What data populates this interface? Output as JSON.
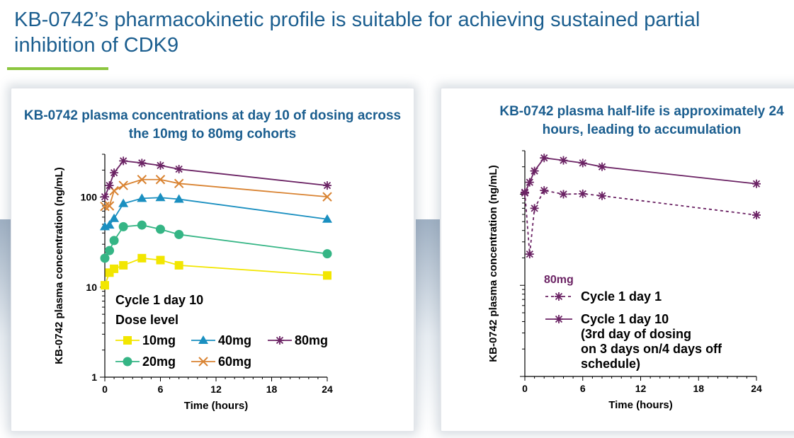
{
  "slide": {
    "title": "KB-0742’s pharmacokinetic profile is suitable for achieving sustained partial inhibition of CDK9"
  },
  "colors": {
    "title_blue": "#1b5e8f",
    "accent_green": "#8cc63f",
    "c10mg": "#f2e600",
    "c20mg": "#35b585",
    "c40mg": "#1a8fc0",
    "c60mg": "#d98332",
    "c80mg": "#6b2364"
  },
  "chart_data": [
    {
      "type": "line",
      "title": "KB-0742 plasma concentrations at day 10 of dosing across the 10mg to 80mg cohorts",
      "xlabel": "Time (hours)",
      "ylabel": "KB-0742 plasma concentration (ng/mL)",
      "xlim": [
        0,
        24
      ],
      "ylim": [
        1,
        300
      ],
      "log_y": true,
      "x_ticks": [
        "0",
        "6",
        "12",
        "18",
        "24"
      ],
      "y_ticks": [
        "1",
        "10",
        "100"
      ],
      "legend_heading": [
        "Cycle 1 day 10",
        "Dose level"
      ],
      "series": [
        {
          "name": "10mg",
          "marker": "square",
          "color": "#f2e600",
          "x": [
            0,
            0.5,
            1,
            2,
            4,
            6,
            8,
            24
          ],
          "values": [
            10.5,
            14.5,
            16,
            17.5,
            21,
            20,
            17.5,
            13.5
          ]
        },
        {
          "name": "20mg",
          "marker": "circle",
          "color": "#35b585",
          "x": [
            0,
            0.5,
            1,
            2,
            4,
            6,
            8,
            24
          ],
          "values": [
            21,
            25.5,
            33,
            47,
            49,
            44,
            38.5,
            23.5
          ]
        },
        {
          "name": "40mg",
          "marker": "triangle",
          "color": "#1a8fc0",
          "x": [
            0,
            0.5,
            1,
            2,
            4,
            6,
            8,
            24
          ],
          "values": [
            47,
            49,
            58,
            85,
            97,
            99,
            95,
            57
          ]
        },
        {
          "name": "60mg",
          "marker": "x",
          "color": "#d98332",
          "x": [
            0,
            0.5,
            1,
            2,
            4,
            6,
            8,
            24
          ],
          "values": [
            79,
            80,
            118,
            135,
            157,
            157,
            142,
            101
          ]
        },
        {
          "name": "80mg",
          "marker": "star",
          "color": "#6b2364",
          "x": [
            0,
            0.5,
            1,
            2,
            4,
            6,
            8,
            24
          ],
          "values": [
            101,
            135,
            187,
            253,
            240,
            225,
            205,
            135
          ]
        }
      ]
    },
    {
      "type": "line",
      "title": "KB-0742 plasma half-life is approximately 24 hours, leading to accumulation",
      "xlabel": "Time (hours)",
      "ylabel": "KB-0742 plasma concentration (ng/mL)",
      "xlim": [
        0,
        24
      ],
      "ylim": [
        1,
        300
      ],
      "log_y": true,
      "x_ticks": [
        "0",
        "6",
        "12",
        "18",
        "24"
      ],
      "legend_heading": "80mg",
      "series": [
        {
          "name": "Cycle 1 day 1",
          "dashed": true,
          "color": "#6b2364",
          "x": [
            0,
            0.5,
            1,
            2,
            4,
            6,
            8,
            24
          ],
          "values": [
            105,
            22,
            70,
            110,
            100,
            101,
            96,
            59
          ]
        },
        {
          "name": "Cycle 1 day 10\n(3rd day of dosing\non 3 days on/4 days off\nschedule)",
          "dashed": false,
          "color": "#6b2364",
          "x": [
            0,
            0.5,
            1,
            2,
            4,
            6,
            8,
            24
          ],
          "values": [
            103,
            135,
            180,
            250,
            235,
            220,
            200,
            130
          ]
        }
      ]
    }
  ]
}
